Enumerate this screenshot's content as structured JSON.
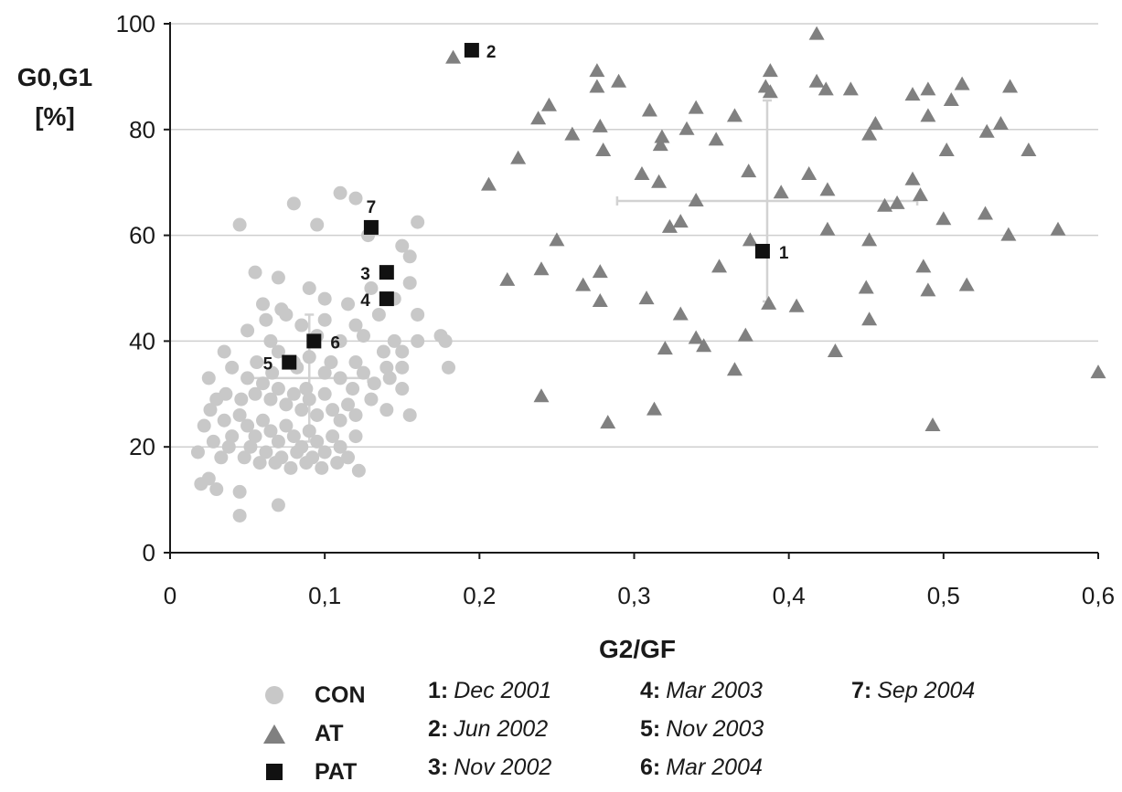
{
  "chart_data": {
    "type": "scatter",
    "title": "",
    "xlabel": "G2/GF",
    "ylabel_lines": [
      "G0,G1",
      "[%]"
    ],
    "xlim": [
      0,
      0.6
    ],
    "ylim": [
      0,
      100
    ],
    "x_ticks": [
      0,
      0.1,
      0.2,
      0.3,
      0.4,
      0.5,
      0.6
    ],
    "x_tick_labels": [
      "0",
      "0,1",
      "0,2",
      "0,3",
      "0,4",
      "0,5",
      "0,6"
    ],
    "y_ticks": [
      0,
      20,
      40,
      60,
      80,
      100
    ],
    "y_tick_labels": [
      "0",
      "20",
      "40",
      "60",
      "80",
      "100"
    ],
    "grid": "horizontal",
    "legend_position": "bottom",
    "series": [
      {
        "name": "CON",
        "marker": "circle",
        "color": "#c8c8c8",
        "points": [
          [
            0.045,
            62
          ],
          [
            0.08,
            66
          ],
          [
            0.11,
            68
          ],
          [
            0.12,
            67
          ],
          [
            0.16,
            62.5
          ],
          [
            0.095,
            62
          ],
          [
            0.128,
            60
          ],
          [
            0.15,
            58
          ],
          [
            0.055,
            53
          ],
          [
            0.07,
            52
          ],
          [
            0.09,
            50
          ],
          [
            0.1,
            48
          ],
          [
            0.115,
            47
          ],
          [
            0.13,
            50
          ],
          [
            0.145,
            48
          ],
          [
            0.155,
            56
          ],
          [
            0.155,
            51
          ],
          [
            0.16,
            45
          ],
          [
            0.06,
            47
          ],
          [
            0.075,
            45
          ],
          [
            0.085,
            43
          ],
          [
            0.095,
            41
          ],
          [
            0.1,
            44
          ],
          [
            0.11,
            40
          ],
          [
            0.12,
            43
          ],
          [
            0.125,
            41
          ],
          [
            0.135,
            45
          ],
          [
            0.145,
            40
          ],
          [
            0.15,
            38
          ],
          [
            0.05,
            42
          ],
          [
            0.065,
            40
          ],
          [
            0.07,
            38
          ],
          [
            0.08,
            36
          ],
          [
            0.09,
            37
          ],
          [
            0.1,
            34
          ],
          [
            0.11,
            33
          ],
          [
            0.12,
            36
          ],
          [
            0.125,
            34
          ],
          [
            0.14,
            35
          ],
          [
            0.035,
            38
          ],
          [
            0.04,
            35
          ],
          [
            0.05,
            33
          ],
          [
            0.055,
            30
          ],
          [
            0.06,
            32
          ],
          [
            0.065,
            29
          ],
          [
            0.07,
            31
          ],
          [
            0.075,
            28
          ],
          [
            0.08,
            30
          ],
          [
            0.085,
            27
          ],
          [
            0.09,
            29
          ],
          [
            0.095,
            26
          ],
          [
            0.1,
            30
          ],
          [
            0.105,
            27
          ],
          [
            0.11,
            25
          ],
          [
            0.115,
            28
          ],
          [
            0.12,
            26
          ],
          [
            0.13,
            29
          ],
          [
            0.14,
            27
          ],
          [
            0.15,
            31
          ],
          [
            0.155,
            26
          ],
          [
            0.025,
            33
          ],
          [
            0.03,
            29
          ],
          [
            0.035,
            25
          ],
          [
            0.04,
            22
          ],
          [
            0.045,
            26
          ],
          [
            0.05,
            24
          ],
          [
            0.055,
            22
          ],
          [
            0.06,
            25
          ],
          [
            0.065,
            23
          ],
          [
            0.07,
            21
          ],
          [
            0.075,
            24
          ],
          [
            0.08,
            22
          ],
          [
            0.085,
            20
          ],
          [
            0.09,
            23
          ],
          [
            0.095,
            21
          ],
          [
            0.1,
            19
          ],
          [
            0.105,
            22
          ],
          [
            0.11,
            20
          ],
          [
            0.115,
            18
          ],
          [
            0.12,
            22
          ],
          [
            0.018,
            19
          ],
          [
            0.022,
            24
          ],
          [
            0.028,
            21
          ],
          [
            0.033,
            18
          ],
          [
            0.038,
            20
          ],
          [
            0.048,
            18
          ],
          [
            0.052,
            20
          ],
          [
            0.058,
            17
          ],
          [
            0.062,
            19
          ],
          [
            0.068,
            17
          ],
          [
            0.072,
            18
          ],
          [
            0.078,
            16
          ],
          [
            0.082,
            19
          ],
          [
            0.088,
            17
          ],
          [
            0.092,
            18
          ],
          [
            0.098,
            16
          ],
          [
            0.108,
            17
          ],
          [
            0.122,
            15.5
          ],
          [
            0.02,
            13
          ],
          [
            0.025,
            14
          ],
          [
            0.03,
            12
          ],
          [
            0.045,
            11.5
          ],
          [
            0.07,
            9
          ],
          [
            0.045,
            7
          ],
          [
            0.175,
            41
          ],
          [
            0.18,
            35
          ],
          [
            0.178,
            40
          ],
          [
            0.16,
            40
          ],
          [
            0.15,
            35
          ],
          [
            0.138,
            38
          ],
          [
            0.142,
            33
          ],
          [
            0.132,
            32
          ],
          [
            0.062,
            44
          ],
          [
            0.072,
            46
          ],
          [
            0.082,
            35
          ],
          [
            0.088,
            31
          ],
          [
            0.104,
            36
          ],
          [
            0.118,
            31
          ],
          [
            0.066,
            34
          ],
          [
            0.056,
            36
          ],
          [
            0.046,
            29
          ],
          [
            0.036,
            30
          ],
          [
            0.026,
            27
          ]
        ]
      },
      {
        "name": "AT",
        "marker": "triangle",
        "color": "#808080",
        "points": [
          [
            0.183,
            93.5
          ],
          [
            0.418,
            98
          ],
          [
            0.276,
            91
          ],
          [
            0.29,
            89
          ],
          [
            0.276,
            88
          ],
          [
            0.388,
            91
          ],
          [
            0.385,
            88
          ],
          [
            0.388,
            87
          ],
          [
            0.418,
            89
          ],
          [
            0.424,
            87.5
          ],
          [
            0.44,
            87.5
          ],
          [
            0.48,
            86.5
          ],
          [
            0.49,
            87.5
          ],
          [
            0.512,
            88.5
          ],
          [
            0.543,
            88
          ],
          [
            0.245,
            84.5
          ],
          [
            0.238,
            82
          ],
          [
            0.31,
            83.5
          ],
          [
            0.34,
            84
          ],
          [
            0.365,
            82.5
          ],
          [
            0.49,
            82.5
          ],
          [
            0.505,
            85.5
          ],
          [
            0.537,
            81
          ],
          [
            0.26,
            79
          ],
          [
            0.278,
            80.5
          ],
          [
            0.318,
            78.5
          ],
          [
            0.317,
            77
          ],
          [
            0.334,
            80
          ],
          [
            0.353,
            78
          ],
          [
            0.456,
            81
          ],
          [
            0.452,
            79
          ],
          [
            0.528,
            79.5
          ],
          [
            0.555,
            76
          ],
          [
            0.28,
            76
          ],
          [
            0.502,
            76
          ],
          [
            0.225,
            74.5
          ],
          [
            0.305,
            71.5
          ],
          [
            0.316,
            70
          ],
          [
            0.374,
            72
          ],
          [
            0.395,
            68
          ],
          [
            0.413,
            71.5
          ],
          [
            0.425,
            68.5
          ],
          [
            0.462,
            65.5
          ],
          [
            0.47,
            66
          ],
          [
            0.48,
            70.5
          ],
          [
            0.485,
            67.5
          ],
          [
            0.206,
            69.5
          ],
          [
            0.34,
            66.5
          ],
          [
            0.33,
            62.5
          ],
          [
            0.323,
            61.5
          ],
          [
            0.425,
            61
          ],
          [
            0.527,
            64
          ],
          [
            0.5,
            63
          ],
          [
            0.574,
            61
          ],
          [
            0.542,
            60
          ],
          [
            0.25,
            59
          ],
          [
            0.375,
            59
          ],
          [
            0.452,
            59
          ],
          [
            0.24,
            53.5
          ],
          [
            0.218,
            51.5
          ],
          [
            0.267,
            50.5
          ],
          [
            0.278,
            53
          ],
          [
            0.278,
            47.5
          ],
          [
            0.308,
            48
          ],
          [
            0.355,
            54
          ],
          [
            0.387,
            47
          ],
          [
            0.405,
            46.5
          ],
          [
            0.45,
            50
          ],
          [
            0.487,
            54
          ],
          [
            0.49,
            49.5
          ],
          [
            0.515,
            50.5
          ],
          [
            0.33,
            45
          ],
          [
            0.452,
            44
          ],
          [
            0.32,
            38.5
          ],
          [
            0.34,
            40.5
          ],
          [
            0.345,
            39
          ],
          [
            0.372,
            41
          ],
          [
            0.43,
            38
          ],
          [
            0.365,
            34.5
          ],
          [
            0.6,
            34
          ],
          [
            0.24,
            29.5
          ],
          [
            0.313,
            27
          ],
          [
            0.283,
            24.5
          ],
          [
            0.493,
            24
          ]
        ]
      },
      {
        "name": "PAT",
        "marker": "square",
        "color": "#111111",
        "points": [
          {
            "x": 0.383,
            "y": 57,
            "label": "1"
          },
          {
            "x": 0.195,
            "y": 95,
            "label": "2"
          },
          {
            "x": 0.14,
            "y": 53,
            "label": "3"
          },
          {
            "x": 0.14,
            "y": 48,
            "label": "4"
          },
          {
            "x": 0.077,
            "y": 36,
            "label": "5"
          },
          {
            "x": 0.093,
            "y": 40,
            "label": "6"
          },
          {
            "x": 0.13,
            "y": 61.5,
            "label": "7"
          }
        ]
      }
    ],
    "error_bars": [
      {
        "series": "CON",
        "x": 0.09,
        "y": 33,
        "x_err": 0.038,
        "y_err": 12,
        "color": "#d2d2d2"
      },
      {
        "series": "AT",
        "x": 0.386,
        "y": 66.5,
        "x_err": 0.097,
        "y_err": 19,
        "color": "#d2d2d2"
      }
    ]
  },
  "legend": {
    "series": [
      {
        "name": "CON",
        "marker": "circle"
      },
      {
        "name": "AT",
        "marker": "triangle"
      },
      {
        "name": "PAT",
        "marker": "square"
      }
    ],
    "dates": [
      {
        "num": "1:",
        "text": "Dec 2001"
      },
      {
        "num": "2:",
        "text": "Jun 2002"
      },
      {
        "num": "3:",
        "text": "Nov 2002"
      },
      {
        "num": "4:",
        "text": "Mar 2003"
      },
      {
        "num": "5:",
        "text": "Nov 2003"
      },
      {
        "num": "6:",
        "text": "Mar 2004"
      },
      {
        "num": "7:",
        "text": "Sep 2004"
      }
    ]
  }
}
